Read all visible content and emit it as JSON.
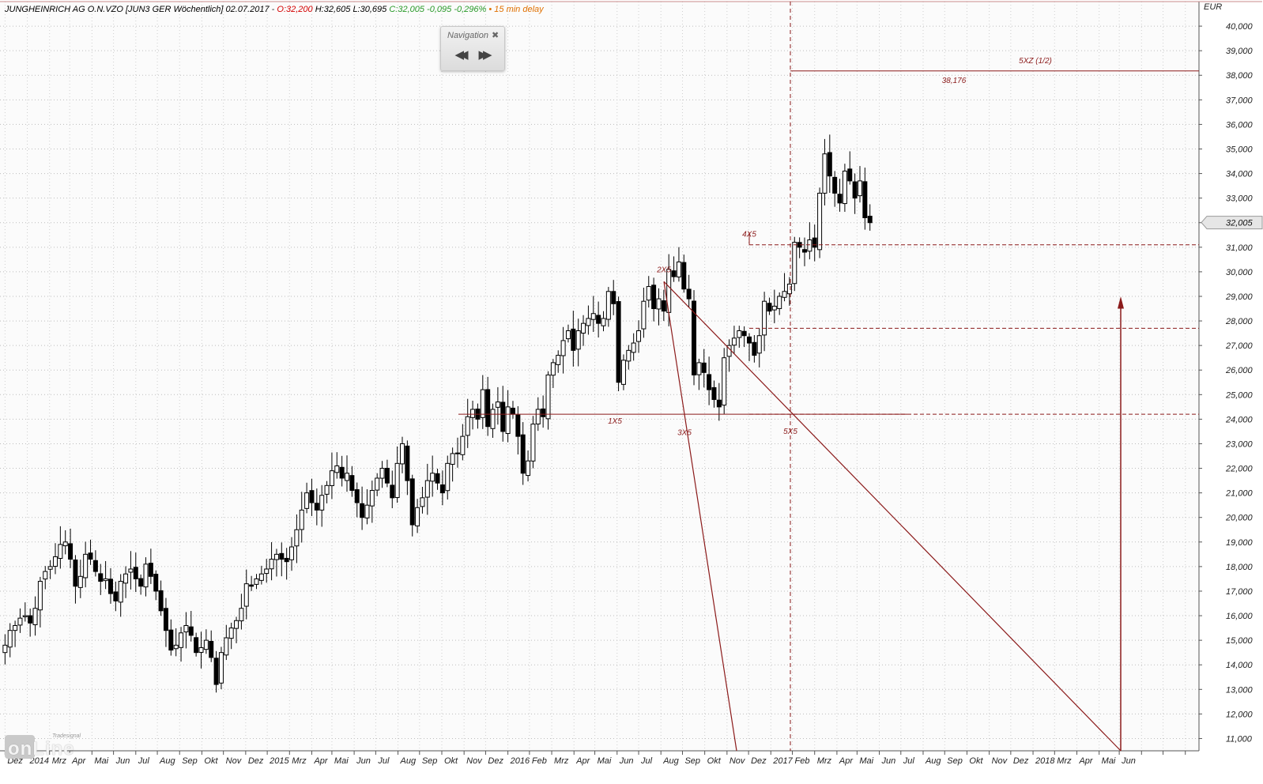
{
  "header": {
    "instrument": "JUNGHEINRICH AG O.N.VZO [JUN3 GER Wöchentlich]",
    "date": "02.07.2017",
    "open": "O:32,200",
    "high": "H:32,605",
    "low": "L:30,695",
    "close": "C:32,005",
    "change": "-0,095",
    "change_pct": "-0,296%",
    "delay": "15 min delay",
    "colors": {
      "open": "#d40000",
      "change": "#2a9a2a",
      "delay": "#e07000"
    }
  },
  "navigation": {
    "title": "Navigation",
    "close_icon": "close-icon",
    "back_icon": "rewind-icon",
    "forward_icon": "fast-forward-icon"
  },
  "logo": {
    "text": "onLine",
    "small": "Tradesignal"
  },
  "chart_data": {
    "type": "candlestick",
    "currency_label": "EUR",
    "current_price_label": "32,005",
    "ylim": [
      10.5,
      41
    ],
    "y_ticks": [
      "11,000",
      "12,000",
      "13,000",
      "14,000",
      "15,000",
      "16,000",
      "17,000",
      "18,000",
      "19,000",
      "20,000",
      "21,000",
      "22,000",
      "23,000",
      "24,000",
      "25,000",
      "26,000",
      "27,000",
      "28,000",
      "29,000",
      "30,000",
      "31,000",
      "32,000",
      "33,000",
      "34,000",
      "35,000",
      "36,000",
      "37,000",
      "38,000",
      "39,000",
      "40,000"
    ],
    "x_ticks": [
      "Dez",
      "2014",
      "Mrz",
      "Apr",
      "Mai",
      "Jun",
      "Jul",
      "Aug",
      "Sep",
      "Okt",
      "Nov",
      "Dez",
      "2015",
      "Mrz",
      "Apr",
      "Mai",
      "Jun",
      "Jul",
      "Aug",
      "Sep",
      "Okt",
      "Nov",
      "Dez",
      "2016",
      "Feb",
      "Mrz",
      "Apr",
      "Mai",
      "Jun",
      "Jul",
      "Aug",
      "Sep",
      "Okt",
      "Nov",
      "Dez",
      "2017",
      "Feb",
      "Mrz",
      "Apr",
      "Mai",
      "Jun",
      "Jul",
      "Aug",
      "Sep",
      "Okt",
      "Nov",
      "Dez",
      "2018",
      "Mrz",
      "Apr",
      "Mai",
      "Jun"
    ],
    "grid": true,
    "candle_interval": "weekly",
    "period_start": "2013-12-01",
    "closes": [
      14.8,
      15.4,
      15.6,
      15.9,
      16.0,
      15.7,
      16.3,
      17.4,
      17.8,
      18.0,
      18.4,
      18.9,
      19.0,
      18.3,
      17.2,
      17.6,
      18.5,
      18.3,
      17.8,
      17.4,
      17.5,
      16.9,
      16.6,
      17.4,
      17.7,
      17.9,
      17.5,
      17.2,
      18.1,
      17.6,
      17.0,
      16.2,
      15.4,
      14.6,
      14.8,
      15.3,
      15.6,
      15.2,
      14.5,
      14.7,
      15.0,
      14.3,
      13.2,
      14.5,
      15.1,
      15.5,
      15.8,
      16.3,
      17.3,
      17.2,
      17.5,
      17.7,
      17.9,
      18.3,
      18.5,
      18.3,
      18.2,
      18.8,
      19.5,
      20.3,
      21.0,
      20.6,
      20.3,
      20.9,
      21.3,
      21.9,
      22.1,
      21.6,
      21.8,
      21.1,
      20.6,
      20.0,
      20.5,
      21.1,
      21.6,
      22.0,
      21.4,
      20.8,
      22.2,
      23.0,
      21.5,
      19.7,
      20.4,
      20.8,
      21.5,
      21.8,
      21.4,
      21.0,
      22.2,
      22.6,
      22.6,
      23.3,
      24.1,
      24.4,
      24.0,
      25.2,
      23.7,
      24.4,
      24.7,
      23.5,
      24.5,
      24.2,
      23.3,
      21.8,
      22.3,
      23.8,
      24.4,
      24.1,
      25.8,
      26.3,
      26.6,
      27.2,
      27.6,
      26.8,
      27.6,
      27.9,
      28.1,
      28.3,
      27.9,
      28.1,
      29.2,
      28.7,
      25.5,
      26.4,
      26.8,
      27.1,
      27.6,
      28.8,
      29.4,
      28.5,
      28.9,
      28.4,
      30.1,
      29.8,
      30.4,
      29.3,
      28.9,
      25.8,
      26.3,
      25.9,
      25.2,
      24.8,
      24.5,
      26.5,
      27.0,
      27.3,
      27.6,
      27.4,
      27.1,
      26.6,
      27.4,
      28.8,
      28.4,
      28.6,
      29.0,
      29.2,
      29.5,
      31.2,
      31.0,
      30.8,
      31.3,
      31.0,
      33.2,
      34.8,
      33.9,
      33.2,
      32.8,
      34.1,
      33.7,
      33.0,
      33.7,
      32.2,
      32.0
    ],
    "open_high_low_note": "",
    "annotations": [
      {
        "label": "1X5",
        "price": 24.2
      },
      {
        "label": "2X5",
        "price": 29.6
      },
      {
        "label": "3X5",
        "price": 24.0
      },
      {
        "label": "4X5",
        "price": 31.1
      },
      {
        "label": "5X5",
        "price": 24.2
      },
      {
        "label": "5XZ (1/2)",
        "price": 38.176
      },
      {
        "label": "38,176",
        "price": 38.176
      }
    ],
    "horizontal_levels": [
      24.2,
      27.7,
      31.1,
      38.176
    ],
    "line_color": "#8b1a1a",
    "candle_up_fill": "#ffffff",
    "candle_down_fill": "#000000"
  }
}
